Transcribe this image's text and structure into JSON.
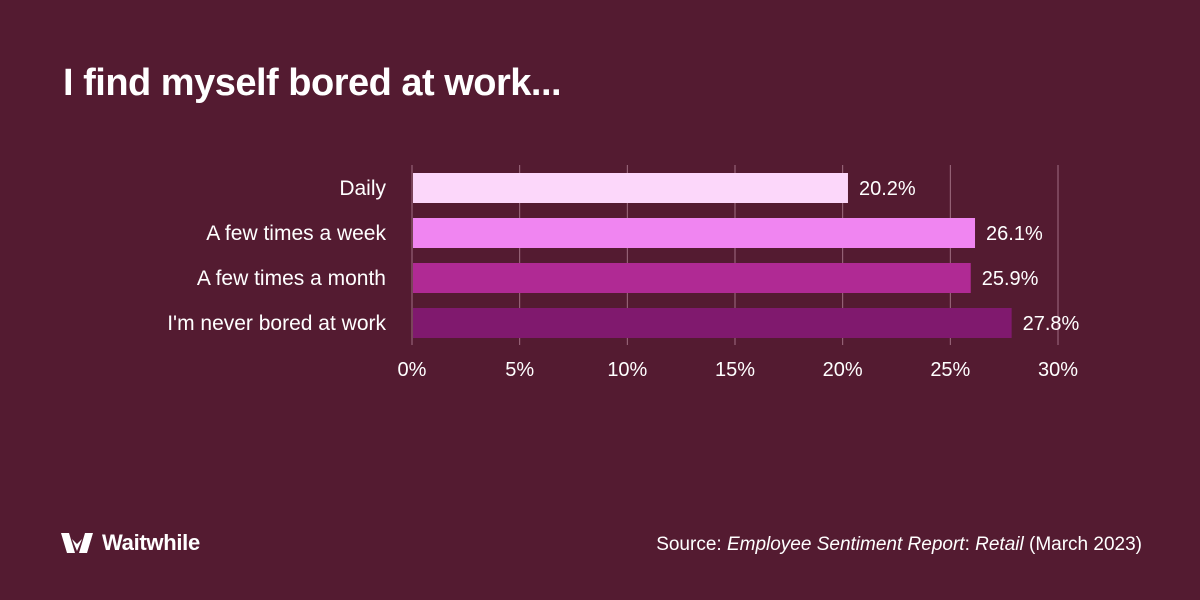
{
  "title": "I find myself bored at work...",
  "colors": {
    "background": "#541b31",
    "grid": "#a06e82",
    "bars": [
      "#fcd7fa",
      "#f085f1",
      "#b02a94",
      "#80196e"
    ]
  },
  "chart_data": {
    "type": "bar",
    "orientation": "horizontal",
    "categories": [
      "Daily",
      "A few times a week",
      "A few times a month",
      "I'm never bored at work"
    ],
    "values": [
      20.2,
      26.1,
      25.9,
      27.8
    ],
    "value_labels": [
      "20.2%",
      "26.1%",
      "25.9%",
      "27.8%"
    ],
    "xlim": [
      0,
      30
    ],
    "x_ticks": [
      0,
      5,
      10,
      15,
      20,
      25,
      30
    ],
    "x_tick_labels": [
      "0%",
      "5%",
      "10%",
      "15%",
      "20%",
      "25%",
      "30%"
    ],
    "grid": true,
    "xlabel": "",
    "ylabel": ""
  },
  "brand": {
    "name": "Waitwhile",
    "icon": "waitwhile-logo-icon"
  },
  "source": {
    "prefix": "Source: ",
    "publication": "Employee Sentiment Report",
    "middle": ": ",
    "subtitle": "Retail",
    "suffix": " (March 2023)"
  }
}
